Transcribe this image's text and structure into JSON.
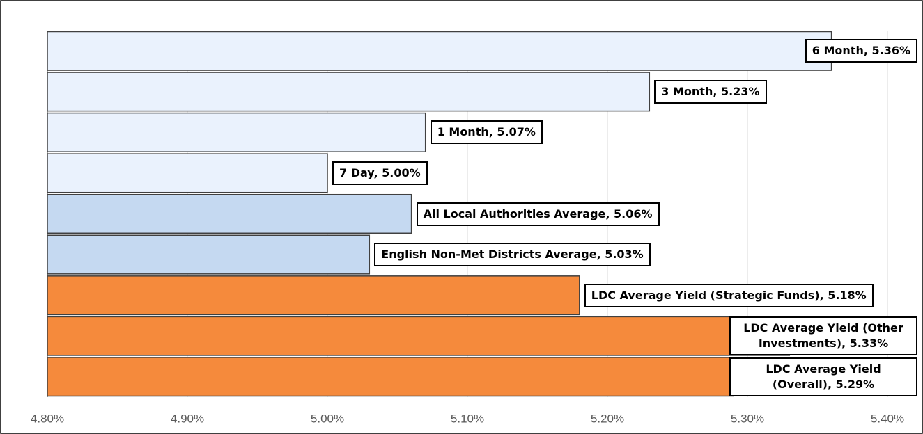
{
  "chart_data": {
    "type": "hbar",
    "values": [
      5.36,
      5.23,
      5.07,
      5.0,
      5.06,
      5.03,
      5.18,
      5.33,
      5.29
    ],
    "value_labels": [
      "6 Month, 5.36%",
      "3 Month, 5.23%",
      "1 Month, 5.07%",
      "7 Day, 5.00%",
      "All Local Authorities Average, 5.06%",
      "English Non-Met Districts Average, 5.03%",
      "LDC Average Yield (Strategic Funds), 5.18%",
      "LDC Average Yield (Other Investments), 5.33%",
      "LDC Average Yield (Overall), 5.29%"
    ],
    "colors": [
      "#eaf2fd",
      "#eaf2fd",
      "#eaf2fd",
      "#eaf2fd",
      "#c5d9f1",
      "#c5d9f1",
      "#f58a3c",
      "#f58a3c",
      "#f58a3c"
    ],
    "xlim": [
      4.8,
      5.4
    ],
    "xticks": [
      {
        "value": 4.8,
        "label": "4.80%"
      },
      {
        "value": 4.9,
        "label": "4.90%"
      },
      {
        "value": 5.0,
        "label": "5.00%"
      },
      {
        "value": 5.1,
        "label": "5.10%"
      },
      {
        "value": 5.2,
        "label": "5.20%"
      },
      {
        "value": 5.3,
        "label": "5.30%"
      },
      {
        "value": 5.4,
        "label": "5.40%"
      }
    ],
    "grid": true
  }
}
